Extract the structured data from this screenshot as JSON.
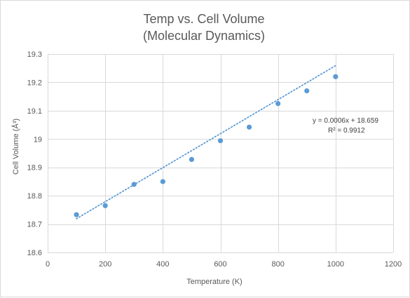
{
  "chart_data": {
    "type": "scatter",
    "title": [
      "Temp vs. Cell Volume",
      "(Molecular Dynamics)"
    ],
    "xlabel": "Temperature  (K)",
    "ylabel": "Cell Volume (Å³)",
    "xlim": [
      0,
      1200
    ],
    "ylim": [
      18.6,
      19.3
    ],
    "xticks": [
      0,
      200,
      400,
      600,
      800,
      1000,
      1200
    ],
    "yticks": [
      18.6,
      18.7,
      18.8,
      18.9,
      19,
      19.1,
      19.2,
      19.3
    ],
    "xtick_labels": [
      "0",
      "200",
      "400",
      "600",
      "800",
      "1000",
      "1200"
    ],
    "ytick_labels": [
      "18.6",
      "18.7",
      "18.8",
      "18.9",
      "19",
      "19.1",
      "19.2",
      "19.3"
    ],
    "grid": true,
    "series": [
      {
        "x": [
          100,
          200,
          300,
          400,
          500,
          600,
          700,
          800,
          900,
          1000
        ],
        "y": [
          18.733,
          18.765,
          18.84,
          18.85,
          18.928,
          18.994,
          19.042,
          19.125,
          19.17,
          19.22
        ],
        "color": "#5b9bd5"
      }
    ],
    "trendline": {
      "type": "linear",
      "slope": 0.0006,
      "intercept": 18.659,
      "x_range": [
        100,
        1000
      ],
      "style": "dotted",
      "color": "#5b9bd5"
    },
    "annotations": [
      "y = 0.0006x + 18.659",
      "R² = 0.9912"
    ]
  }
}
